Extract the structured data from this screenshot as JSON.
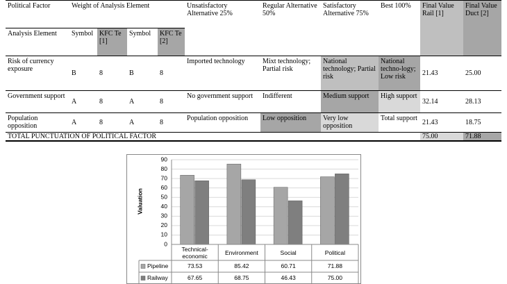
{
  "table": {
    "header": [
      "Political Factor",
      "Weight of Analysis Element",
      "Unsatisfactory Alternative 25%",
      "Regular Alternative 50%",
      "Satisfactory Alternative 75%",
      "Best 100%",
      "Final Value Rail [1]",
      "Final Value Duct [2]"
    ],
    "subheader": [
      "Analysis Element",
      "Symbol",
      "KFC Te [1]",
      "Symbol",
      "KFC Te [2]"
    ],
    "rows": [
      [
        "Risk of currency exposure",
        "B",
        "8",
        "B",
        "8",
        "Imported technology",
        "Mixt technology; Partial risk",
        "National technology; Partial risk",
        "National techno-logy; Low risk",
        "21.43",
        "25.00"
      ],
      [
        "Government support",
        "A",
        "8",
        "A",
        "8",
        "No government support",
        "Indifferent",
        "Medium support",
        "High support",
        "32.14",
        "28.13"
      ],
      [
        "Population opposition",
        "A",
        "8",
        "A",
        "8",
        "Population opposition",
        "Low opposition",
        "Very low opposition",
        "Total support",
        "21.43",
        "18.75"
      ]
    ],
    "total": {
      "label": "TOTAL PUNCTUATION OF POLITICAL FACTOR",
      "values": [
        "75.00",
        "71.88"
      ]
    }
  },
  "chart_data": {
    "type": "bar",
    "y_label": "Valuation",
    "categories": [
      "Technical-economic",
      "Environment",
      "Social",
      "Political"
    ],
    "series": [
      {
        "name": "Pipeline",
        "color": "#a6a6a6",
        "values": [
          73.53,
          85.42,
          60.71,
          71.88
        ],
        "value_labels": [
          "73.53",
          "85.42",
          "60.71",
          "71.88"
        ]
      },
      {
        "name": "Railway",
        "color": "#7f7f7f",
        "values": [
          67.65,
          68.75,
          46.43,
          75.0
        ],
        "value_labels": [
          "67.65",
          "68.75",
          "46.43",
          "75.00"
        ]
      }
    ],
    "ylim": [
      0,
      90
    ],
    "yticks": [
      0,
      10,
      20,
      30,
      40,
      50,
      60,
      70,
      80,
      90
    ],
    "grid": true
  }
}
